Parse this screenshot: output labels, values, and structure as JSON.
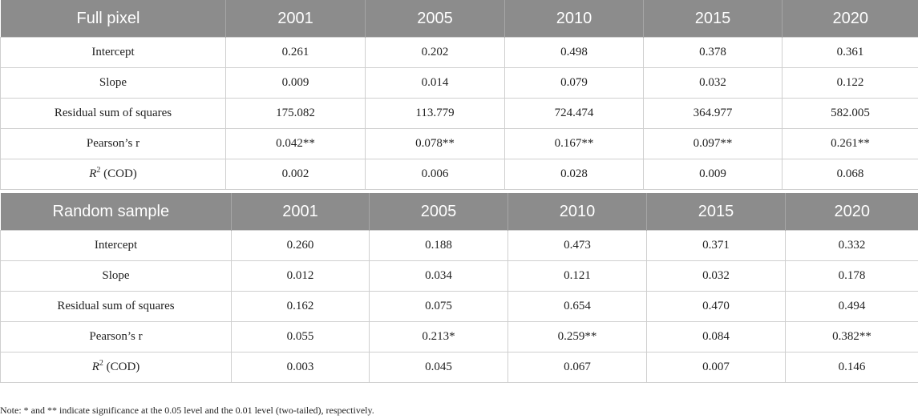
{
  "table_full": {
    "header": [
      "Full pixel",
      "2001",
      "2005",
      "2010",
      "2015",
      "2020"
    ],
    "rows": [
      {
        "label": "Intercept",
        "values": [
          "0.261",
          "0.202",
          "0.498",
          "0.378",
          "0.361"
        ]
      },
      {
        "label": "Slope",
        "values": [
          "0.009",
          "0.014",
          "0.079",
          "0.032",
          "0.122"
        ]
      },
      {
        "label": "Residual sum of squares",
        "values": [
          "175.082",
          "113.779",
          "724.474",
          "364.977",
          "582.005"
        ]
      },
      {
        "label": "Pearson’s r",
        "values": [
          "0.042**",
          "0.078**",
          "0.167**",
          "0.097**",
          "0.261**"
        ]
      },
      {
        "label_main": "R",
        "label_sup": "2",
        "label_rest": " (COD)",
        "values": [
          "0.002",
          "0.006",
          "0.028",
          "0.009",
          "0.068"
        ]
      }
    ]
  },
  "table_random": {
    "header": [
      "Random sample",
      "2001",
      "2005",
      "2010",
      "2015",
      "2020"
    ],
    "rows": [
      {
        "label": "Intercept",
        "values": [
          "0.260",
          "0.188",
          "0.473",
          "0.371",
          "0.332"
        ]
      },
      {
        "label": "Slope",
        "values": [
          "0.012",
          "0.034",
          "0.121",
          "0.032",
          "0.178"
        ]
      },
      {
        "label": "Residual sum of squares",
        "values": [
          "0.162",
          "0.075",
          "0.654",
          "0.470",
          "0.494"
        ]
      },
      {
        "label": "Pearson’s r",
        "values": [
          "0.055",
          "0.213*",
          "0.259**",
          "0.084",
          "0.382**"
        ]
      },
      {
        "label_main": "R",
        "label_sup": "2",
        "label_rest": " (COD)",
        "values": [
          "0.003",
          "0.045",
          "0.067",
          "0.007",
          "0.146"
        ]
      }
    ]
  },
  "note": "Note: * and ** indicate significance at the 0.05 level and the 0.01 level (two-tailed), respectively."
}
